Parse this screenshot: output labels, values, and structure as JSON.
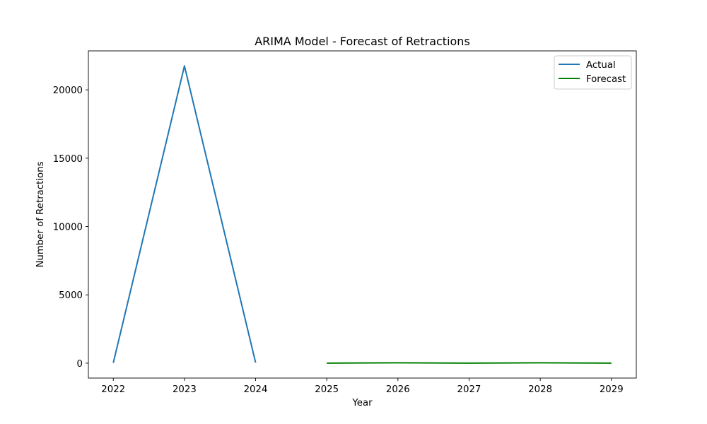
{
  "chart_data": {
    "type": "line",
    "title": "ARIMA Model - Forecast of Retractions",
    "xlabel": "Year",
    "ylabel": "Number of Retractions",
    "xlim": [
      2021.65,
      2029.35
    ],
    "ylim": [
      -1090,
      22850
    ],
    "xticks": [
      2022,
      2023,
      2024,
      2025,
      2026,
      2027,
      2028,
      2029
    ],
    "yticks": [
      0,
      5000,
      10000,
      15000,
      20000
    ],
    "grid": false,
    "legend_position": "top-right",
    "series": [
      {
        "name": "Actual",
        "color": "#1f77b4",
        "x": [
          2022,
          2023,
          2024
        ],
        "values": [
          20,
          21750,
          40
        ]
      },
      {
        "name": "Forecast",
        "color": "#008000",
        "x": [
          2025,
          2026,
          2027,
          2028,
          2029
        ],
        "values": [
          0,
          30,
          0,
          30,
          0
        ]
      }
    ]
  }
}
